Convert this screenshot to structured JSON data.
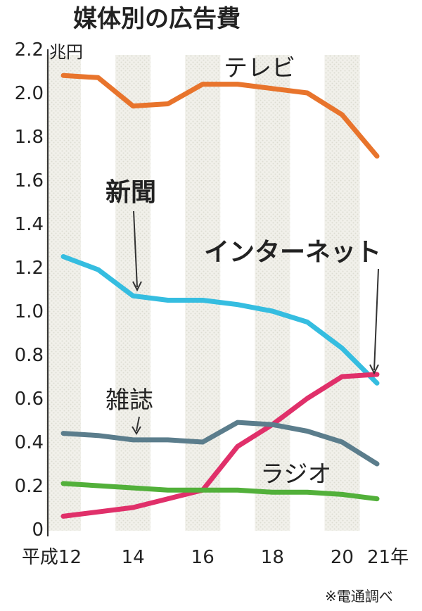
{
  "chart_data": {
    "type": "line",
    "title": "媒体別の広告費",
    "y_unit": "兆円",
    "x_start_label": "平成12",
    "x_end_label": "21年",
    "x_tick_labels": [
      "14",
      "16",
      "18",
      "20"
    ],
    "x": [
      12,
      13,
      14,
      15,
      16,
      17,
      18,
      19,
      20,
      21
    ],
    "ylim": [
      0,
      2.2
    ],
    "y_ticks": [
      0,
      0.2,
      0.4,
      0.6,
      0.8,
      1.0,
      1.2,
      1.4,
      1.6,
      1.8,
      2.0,
      2.2
    ],
    "y_tick_labels": [
      "0",
      "0.2",
      "0.4",
      "0.6",
      "0.8",
      "1.0",
      "1.2",
      "1.4",
      "1.6",
      "1.8",
      "2.0",
      "2.2"
    ],
    "series": [
      {
        "name": "テレビ",
        "color": "#e8742c",
        "values": [
          2.08,
          2.07,
          1.94,
          1.95,
          2.04,
          2.04,
          2.02,
          2.0,
          1.9,
          1.71
        ]
      },
      {
        "name": "新聞",
        "color": "#35bde0",
        "values": [
          1.25,
          1.19,
          1.07,
          1.05,
          1.05,
          1.03,
          1.0,
          0.95,
          0.83,
          0.67
        ]
      },
      {
        "name": "インターネット",
        "color": "#e0306a",
        "values": [
          0.06,
          0.08,
          0.1,
          0.14,
          0.18,
          0.38,
          0.48,
          0.6,
          0.7,
          0.71
        ]
      },
      {
        "name": "雑誌",
        "color": "#5b7d8c",
        "values": [
          0.44,
          0.43,
          0.41,
          0.41,
          0.4,
          0.49,
          0.48,
          0.45,
          0.4,
          0.3
        ]
      },
      {
        "name": "ラジオ",
        "color": "#52b03a",
        "values": [
          0.21,
          0.2,
          0.19,
          0.18,
          0.18,
          0.18,
          0.17,
          0.17,
          0.16,
          0.14
        ]
      }
    ],
    "shaded_x": [
      12,
      14,
      16,
      18,
      20
    ],
    "grid": false,
    "source_note": "※電通調べ"
  }
}
